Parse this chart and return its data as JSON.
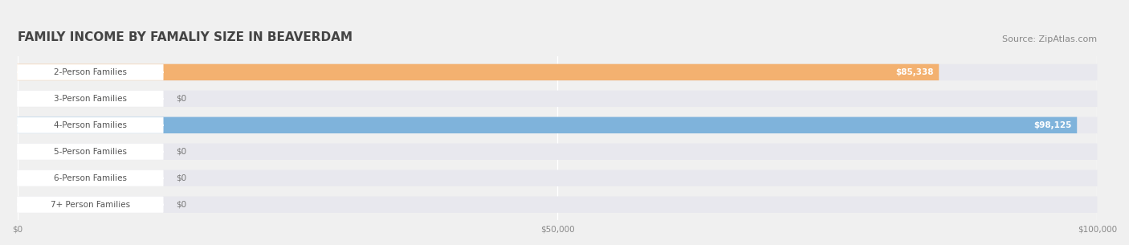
{
  "title": "FAMILY INCOME BY FAMALIY SIZE IN BEAVERDAM",
  "source": "Source: ZipAtlas.com",
  "categories": [
    "2-Person Families",
    "3-Person Families",
    "4-Person Families",
    "5-Person Families",
    "6-Person Families",
    "7+ Person Families"
  ],
  "values": [
    85338,
    0,
    98125,
    0,
    0,
    0
  ],
  "bar_colors": [
    "#f5a85a",
    "#f0a0a8",
    "#6daad8",
    "#c8a0d0",
    "#70c8c0",
    "#b0b8e0"
  ],
  "label_bg_colors": [
    "#f5a85a",
    "#f0a0a8",
    "#6daad8",
    "#c8a0d0",
    "#70c8c0",
    "#b0b8e0"
  ],
  "xlim": [
    0,
    100000
  ],
  "xticks": [
    0,
    50000,
    100000
  ],
  "xtick_labels": [
    "$0",
    "$50,000",
    "$100,000"
  ],
  "background_color": "#f0f0f0",
  "bar_background_color": "#e8e8ee",
  "title_fontsize": 11,
  "source_fontsize": 8,
  "label_fontsize": 7.5,
  "value_fontsize": 7.5
}
